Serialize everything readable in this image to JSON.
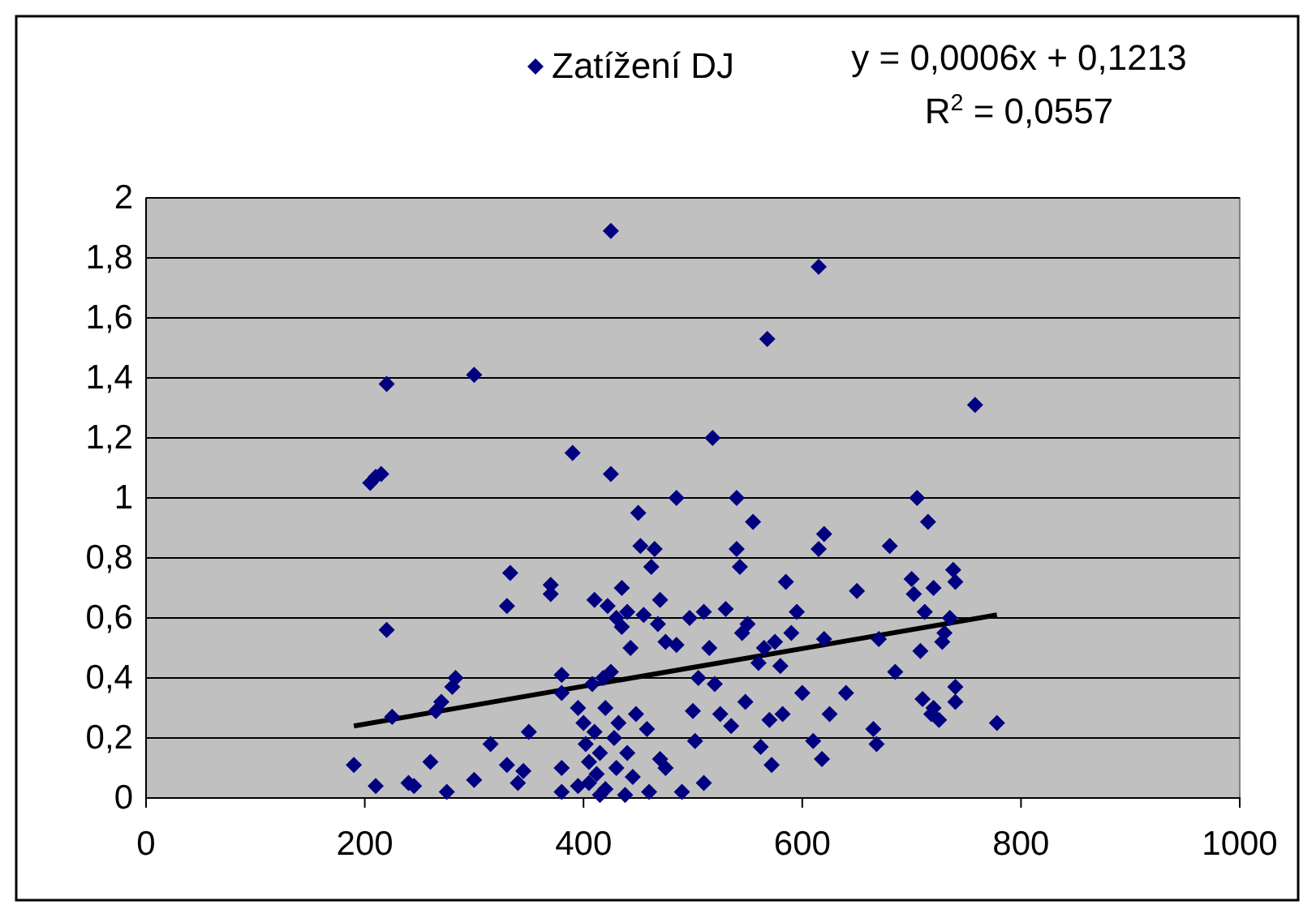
{
  "chart_data": {
    "type": "scatter",
    "grid": "y",
    "legend": "top",
    "annotations": [
      "y = 0,0006x + 0,1213",
      "R$^{2}$ = 0,0557"
    ],
    "xlim": [
      0,
      1000
    ],
    "xticks": [
      0,
      200,
      400,
      600,
      800,
      1000
    ],
    "ylim": [
      0,
      2
    ],
    "yticks": [
      0,
      {
        "value": 0.2,
        "label": "0,2"
      },
      {
        "value": 0.4,
        "label": "0,4"
      },
      {
        "value": 0.6,
        "label": "0,6"
      },
      {
        "value": 0.8,
        "label": "0,8"
      },
      1,
      {
        "value": 1.2,
        "label": "1,2"
      },
      {
        "value": 1.4,
        "label": "1,4"
      },
      {
        "value": 1.6,
        "label": "1,6"
      },
      {
        "value": 1.8,
        "label": "1,8"
      },
      2
    ],
    "series": [
      {
        "name": "Zatížení DJ",
        "color": "#000080",
        "marker": "diamond",
        "x": [
          190,
          205,
          210,
          215,
          210,
          220,
          220,
          225,
          240,
          245,
          260,
          265,
          270,
          275,
          280,
          283,
          300,
          300,
          315,
          330,
          330,
          333,
          340,
          345,
          350,
          370,
          370,
          380,
          380,
          380,
          380,
          390,
          395,
          395,
          400,
          402,
          405,
          405,
          408,
          410,
          410,
          412,
          415,
          415,
          418,
          420,
          420,
          422,
          425,
          425,
          425,
          428,
          430,
          430,
          432,
          435,
          435,
          438,
          440,
          440,
          443,
          445,
          448,
          450,
          452,
          455,
          458,
          460,
          462,
          465,
          468,
          470,
          470,
          475,
          475,
          485,
          485,
          490,
          497,
          500,
          502,
          505,
          510,
          510,
          515,
          518,
          520,
          525,
          530,
          535,
          540,
          540,
          543,
          545,
          548,
          550,
          555,
          560,
          562,
          565,
          568,
          570,
          572,
          575,
          580,
          582,
          585,
          590,
          595,
          600,
          610,
          615,
          615,
          618,
          620,
          620,
          625,
          640,
          650,
          665,
          668,
          670,
          680,
          685,
          700,
          702,
          705,
          708,
          710,
          712,
          715,
          718,
          720,
          720,
          725,
          728,
          730,
          735,
          738,
          740,
          740,
          740,
          758,
          778
        ],
        "values": [
          0.11,
          1.05,
          1.07,
          1.08,
          0.04,
          1.38,
          0.56,
          0.27,
          0.05,
          0.04,
          0.12,
          0.29,
          0.32,
          0.02,
          0.37,
          0.4,
          1.41,
          0.06,
          0.18,
          0.11,
          0.64,
          0.75,
          0.05,
          0.09,
          0.22,
          0.68,
          0.71,
          0.35,
          0.41,
          0.1,
          0.02,
          1.15,
          0.04,
          0.3,
          0.25,
          0.18,
          0.12,
          0.05,
          0.38,
          0.66,
          0.22,
          0.08,
          0.15,
          0.01,
          0.4,
          0.3,
          0.03,
          0.64,
          1.89,
          1.08,
          0.42,
          0.2,
          0.1,
          0.6,
          0.25,
          0.7,
          0.57,
          0.01,
          0.62,
          0.15,
          0.5,
          0.07,
          0.28,
          0.95,
          0.84,
          0.61,
          0.23,
          0.02,
          0.77,
          0.83,
          0.58,
          0.13,
          0.66,
          0.1,
          0.52,
          0.51,
          1,
          0.02,
          0.6,
          0.29,
          0.19,
          0.4,
          0.05,
          0.62,
          0.5,
          1.2,
          0.38,
          0.28,
          0.63,
          0.24,
          1,
          0.83,
          0.77,
          0.55,
          0.32,
          0.58,
          0.92,
          0.45,
          0.17,
          0.5,
          1.53,
          0.26,
          0.11,
          0.52,
          0.44,
          0.28,
          0.72,
          0.55,
          0.62,
          0.35,
          0.19,
          1.77,
          0.83,
          0.13,
          0.88,
          0.53,
          0.28,
          0.35,
          0.69,
          0.23,
          0.18,
          0.53,
          0.84,
          0.42,
          0.73,
          0.68,
          1,
          0.49,
          0.33,
          0.62,
          0.92,
          0.28,
          0.3,
          0.7,
          0.26,
          0.52,
          0.55,
          0.6,
          0.76,
          0.72,
          0.37,
          0.32,
          1.31,
          0.25
        ]
      },
      {
        "type": "line",
        "marker": "none",
        "color": "#000000",
        "x": [
          190,
          778
        ],
        "values": [
          0.24,
          0.61
        ]
      }
    ]
  }
}
